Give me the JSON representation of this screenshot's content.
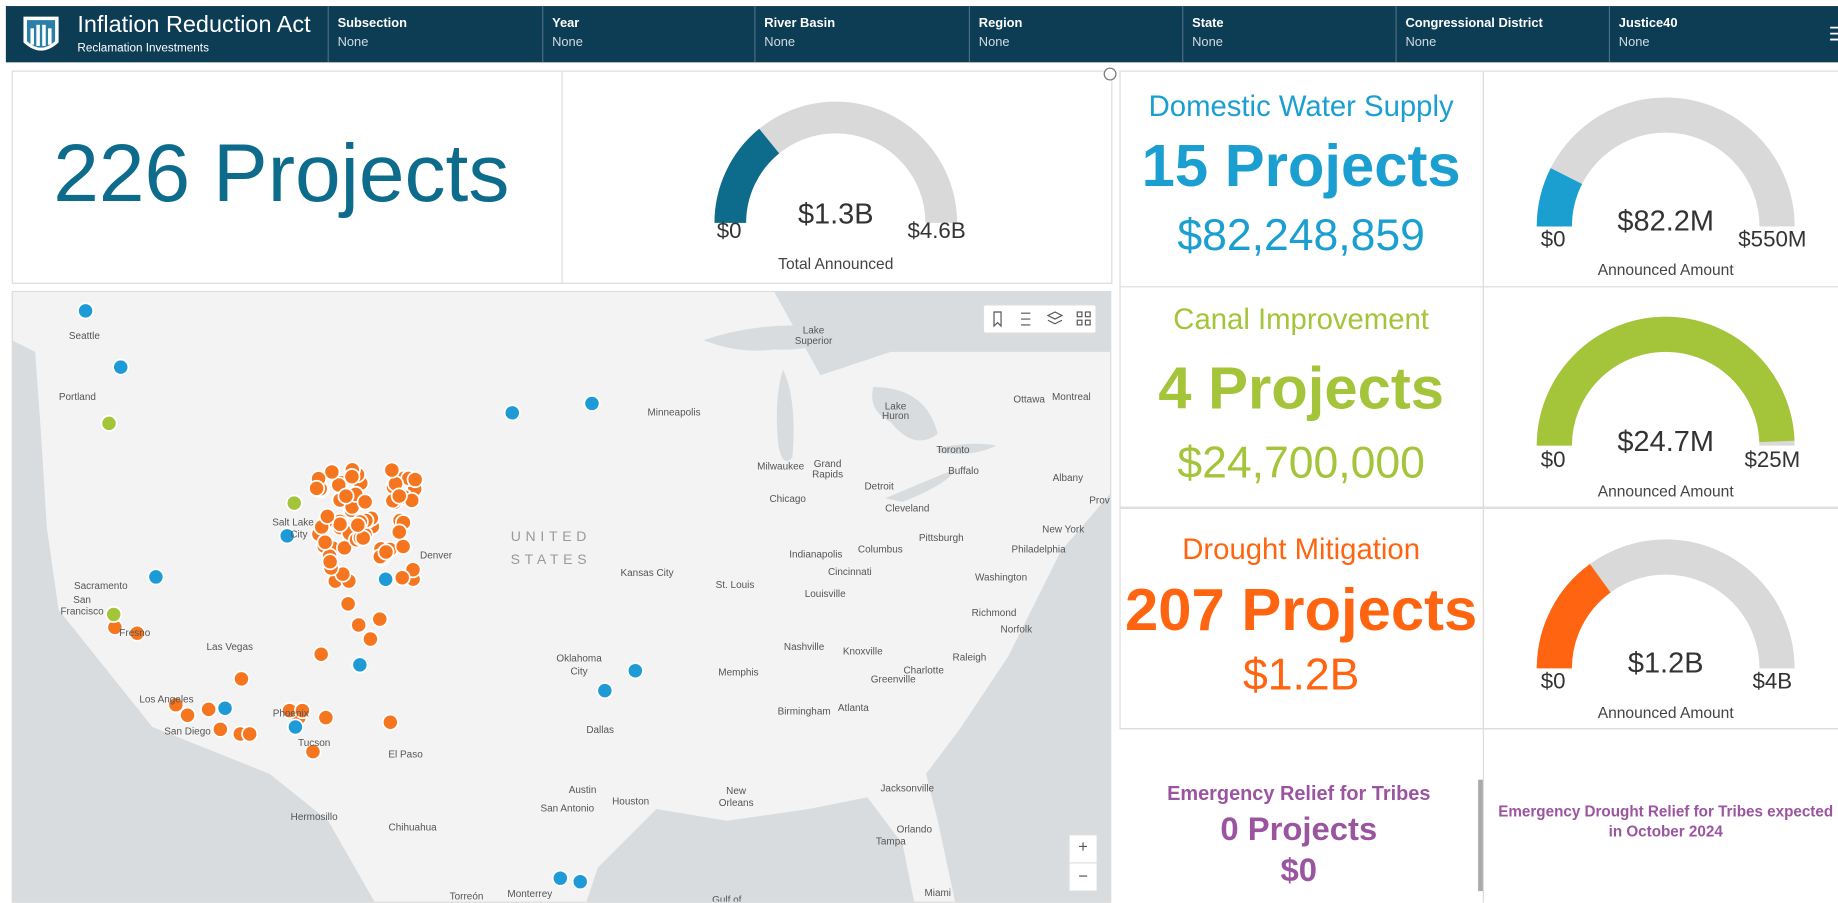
{
  "header": {
    "title": "Inflation Reduction Act",
    "subtitle": "Reclamation Investments",
    "filters": [
      {
        "label": "Subsection",
        "value": "None"
      },
      {
        "label": "Year",
        "value": "None"
      },
      {
        "label": "River Basin",
        "value": "None"
      },
      {
        "label": "Region",
        "value": "None"
      },
      {
        "label": "State",
        "value": "None"
      },
      {
        "label": "Congressional District",
        "value": "None"
      },
      {
        "label": "Justice40",
        "value": "None"
      }
    ]
  },
  "summary": {
    "projects": "226 Projects",
    "gauge": {
      "min": {
        "value": 0,
        "label": "$0"
      },
      "value": {
        "value": 1300000000,
        "label": "$1.3B"
      },
      "max": {
        "value": 4600000000,
        "label": "$4.6B"
      },
      "caption": "Total Announced"
    }
  },
  "cards": [
    {
      "title": "Domestic Water Supply",
      "projects": "15 Projects",
      "amount": "$82,248,859",
      "color": "#1b9fd1",
      "gauge": {
        "min": {
          "value": 0,
          "label": "$0"
        },
        "value": {
          "value": 82200000,
          "label": "$82.2M"
        },
        "max": {
          "value": 550000000,
          "label": "$550M"
        },
        "caption": "Announced Amount"
      }
    },
    {
      "title": "Canal Improvement",
      "projects": "4 Projects",
      "amount": "$24,700,000",
      "color": "#a4c439",
      "gauge": {
        "min": {
          "value": 0,
          "label": "$0"
        },
        "value": {
          "value": 24700000,
          "label": "$24.7M"
        },
        "max": {
          "value": 25000000,
          "label": "$25M"
        },
        "caption": "Announced Amount"
      }
    },
    {
      "title": "Drought Mitigation",
      "projects": "207 Projects",
      "amount": "$1.2B",
      "color": "#ff6510",
      "gauge": {
        "min": {
          "value": 0,
          "label": "$0"
        },
        "value": {
          "value": 1200000000,
          "label": "$1.2B"
        },
        "max": {
          "value": 4000000000,
          "label": "$4B"
        },
        "caption": "Announced Amount"
      }
    }
  ],
  "tribes": {
    "title": "Emergency Relief for Tribes",
    "projects": "0 Projects",
    "amount": "$0",
    "note": [
      "Emergency Drought Relief for Tribes  expected",
      "in October 2024"
    ]
  },
  "map": {
    "country": [
      "UNITED",
      "STATES"
    ],
    "cities": [
      "Seattle",
      "Portland",
      "Sacramento",
      "San",
      "Francisco",
      "Fresno",
      "Las Vegas",
      "Los Angeles",
      "San Diego",
      "Phoenix",
      "Tucson",
      "Salt Lake",
      "City",
      "Denver",
      "El Paso",
      "Hermosillo",
      "Chihuahua",
      "Torreón",
      "Monterrey",
      "Minneapolis",
      "Milwaukee",
      "Grand",
      "Rapids",
      "Detroit",
      "Chicago",
      "Toronto",
      "Buffalo",
      "Cleveland",
      "Ottawa",
      "Montreal",
      "Albany",
      "New York",
      "Pittsburgh",
      "Philadelphia",
      "Columbus",
      "Indianapolis",
      "Cincinnati",
      "Kansas City",
      "St. Louis",
      "Louisville",
      "Washington",
      "Richmond",
      "Norfolk",
      "Nashville",
      "Knoxville",
      "Greenville",
      "Charlotte",
      "Raleigh",
      "Oklahoma",
      "City",
      "Memphis",
      "Atlanta",
      "Birmingham",
      "Dallas",
      "Austin",
      "Houston",
      "San Antonio",
      "New",
      "Orleans",
      "Jacksonville",
      "Orlando",
      "Tampa",
      "Miami",
      "Prov",
      "Gulf of",
      "Lake",
      "Superior",
      "Lake",
      "Huron"
    ],
    "zoom": [
      "+",
      "−"
    ]
  }
}
